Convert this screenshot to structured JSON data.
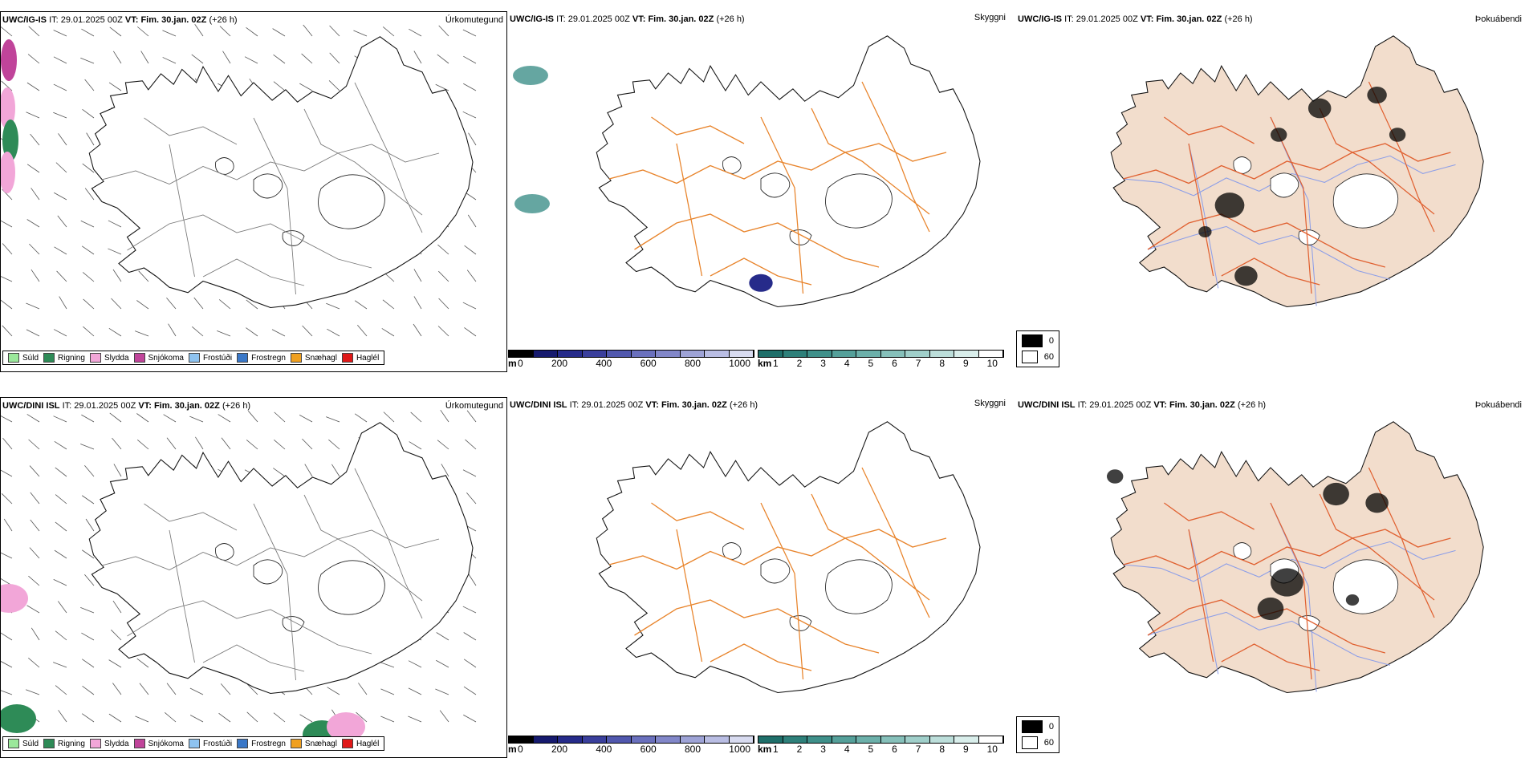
{
  "rows": [
    {
      "model": "UWC/IG-IS",
      "it_label": "IT:",
      "it_value": "29.01.2025 00Z",
      "vt_label": "VT:",
      "vt_value": "Fim. 30.jan. 02Z",
      "lead": "(+26 h)",
      "fields": [
        "Úrkomutegund",
        "Skyggni",
        "Þokuábendi"
      ]
    },
    {
      "model": "UWC/DINI ISL",
      "it_label": "IT:",
      "it_value": "29.01.2025 00Z",
      "vt_label": "VT:",
      "vt_value": "Fim. 30.jan. 02Z",
      "lead": "(+26 h)",
      "fields": [
        "Úrkomutegund",
        "Skyggni",
        "Þokuábendi"
      ]
    }
  ],
  "precip_legend": [
    {
      "label": "Súld",
      "color": "#9be89b"
    },
    {
      "label": "Rigning",
      "color": "#2e8b57"
    },
    {
      "label": "Slydda",
      "color": "#f2a6d8"
    },
    {
      "label": "Snjókoma",
      "color": "#c0449a"
    },
    {
      "label": "Frostúði",
      "color": "#8ec3f0"
    },
    {
      "label": "Frostregn",
      "color": "#3a78c8"
    },
    {
      "label": "Snæhagl",
      "color": "#f0a020"
    },
    {
      "label": "Haglél",
      "color": "#e01818"
    }
  ],
  "height_bar": {
    "unit": "m",
    "ticks": [
      "0",
      "200",
      "400",
      "600",
      "800",
      "1000"
    ],
    "colors": [
      "#000000",
      "#161a6e",
      "#262b8a",
      "#3a3f9c",
      "#5158ae",
      "#6a70bd",
      "#8287c9",
      "#9ea3d6",
      "#b9bde3",
      "#d8dbf0"
    ]
  },
  "vis_bar": {
    "unit": "km",
    "ticks": [
      "1",
      "2",
      "3",
      "4",
      "5",
      "6",
      "7",
      "8",
      "9",
      "10"
    ],
    "colors": [
      "#1f6f6a",
      "#2e807a",
      "#3f908a",
      "#55a09a",
      "#6cb0aa",
      "#86c0ba",
      "#a0cfca",
      "#bcdeda",
      "#d9eeeb",
      "#ffffff"
    ]
  },
  "fog_legend": [
    {
      "label": "0",
      "color": "#000000"
    },
    {
      "label": "60",
      "color": "#ffffff"
    }
  ],
  "colors": {
    "road": "#e8832a",
    "land_fog": "#f2ddcc",
    "river": "#8c9ee8",
    "fog_road": "#e06030"
  }
}
